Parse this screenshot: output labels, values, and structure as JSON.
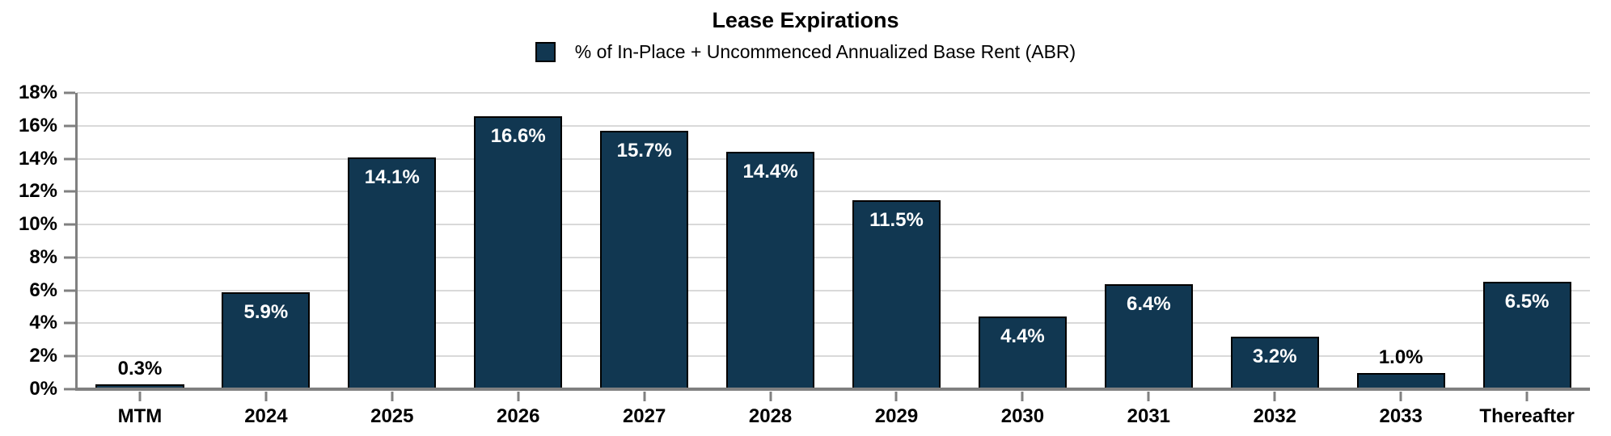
{
  "chart_data": {
    "type": "bar",
    "title": "Lease Expirations",
    "legend": [
      "% of In-Place + Uncommenced Annualized Base Rent (ABR)"
    ],
    "legend_position": "top",
    "categories": [
      "MTM",
      "2024",
      "2025",
      "2026",
      "2027",
      "2028",
      "2029",
      "2030",
      "2031",
      "2032",
      "2033",
      "Thereafter"
    ],
    "values": [
      0.3,
      5.9,
      14.1,
      16.6,
      15.7,
      14.4,
      11.5,
      4.4,
      6.4,
      3.2,
      1.0,
      6.5
    ],
    "value_labels": [
      "0.3%",
      "5.9%",
      "14.1%",
      "16.6%",
      "15.7%",
      "14.4%",
      "11.5%",
      "4.4%",
      "6.4%",
      "3.2%",
      "1.0%",
      "6.5%"
    ],
    "xlabel": "",
    "ylabel": "",
    "ylim": [
      0,
      18
    ],
    "ytick_step": 2,
    "ytick_labels": [
      "0%",
      "2%",
      "4%",
      "6%",
      "8%",
      "10%",
      "12%",
      "14%",
      "16%",
      "18%"
    ],
    "grid": "horizontal",
    "colors": {
      "bar_fill": "#113751",
      "bar_border": "#000000",
      "label_inside": "#ffffff",
      "label_outside": "#000000",
      "gridline": "#d9d9d9",
      "axis": "#808080",
      "text": "#000000"
    }
  }
}
